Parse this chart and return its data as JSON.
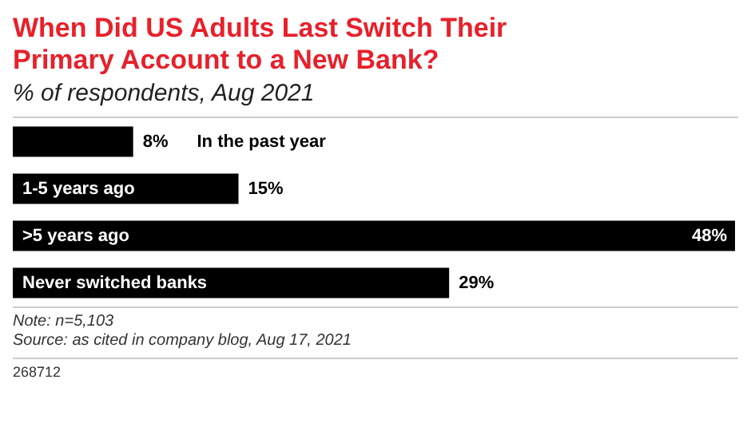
{
  "chart_data": {
    "type": "bar",
    "orientation": "horizontal",
    "title": "When Did US Adults Last Switch Their Primary Account to a New Bank?",
    "subtitle": "% of respondents, Aug 2021",
    "categories": [
      "In the past year",
      "1-5 years ago",
      ">5 years ago",
      "Never switched banks"
    ],
    "values": [
      8,
      15,
      48,
      29
    ],
    "value_labels": [
      "8%",
      "15%",
      "48%",
      "29%"
    ],
    "color": "#000000",
    "xlim": [
      0,
      48
    ],
    "annotations": [
      "Note: n=5,103",
      "Source: as cited in company blog, Aug 17, 2021",
      "268712"
    ]
  }
}
